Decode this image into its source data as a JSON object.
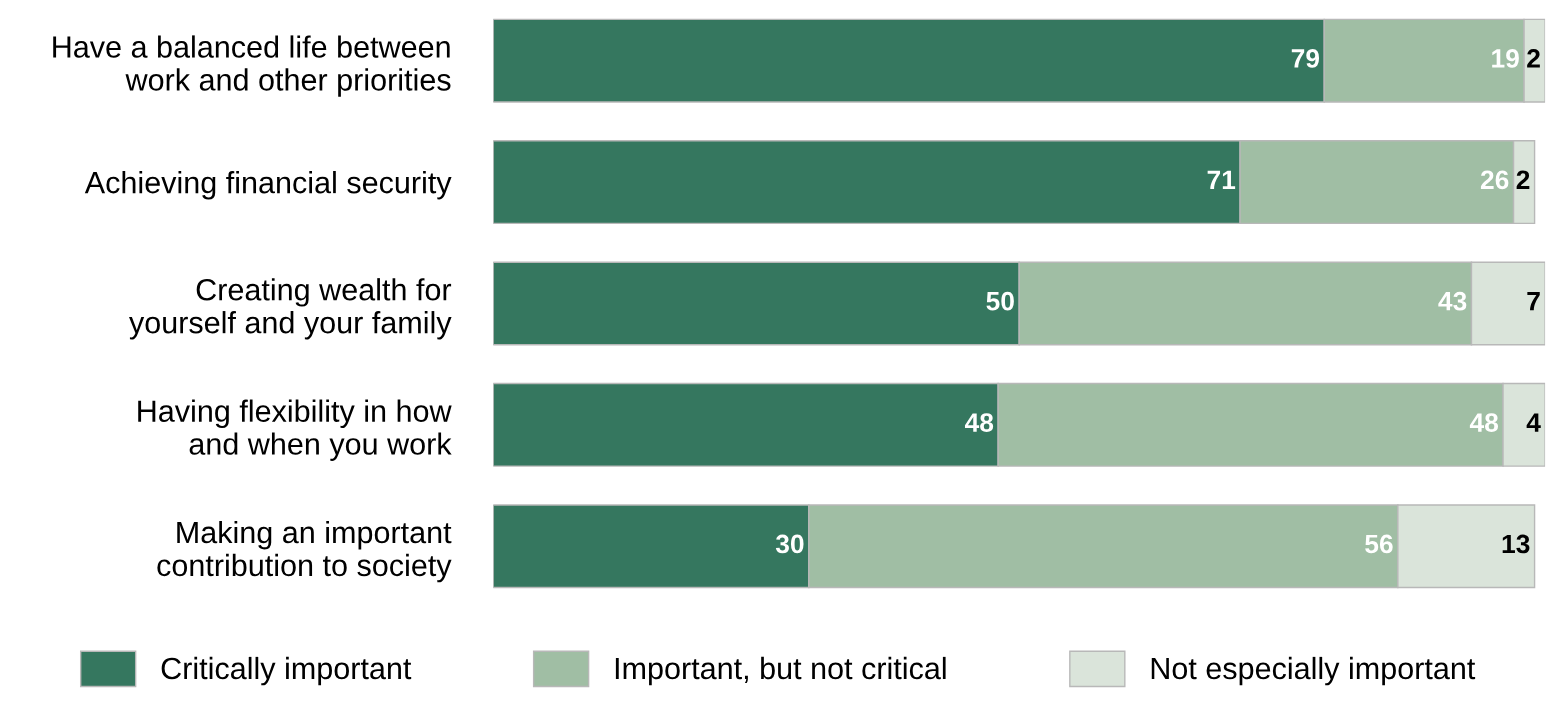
{
  "chart_data": {
    "type": "bar",
    "orientation": "horizontal",
    "stacked": true,
    "data_labels": true,
    "legend": "bottom",
    "grid": false,
    "categories": [
      "Have a balanced life between\nwork and other priorities",
      "Achieving financial security",
      "Creating wealth for\nyourself and your family",
      "Having flexibility in how\nand when you work",
      "Making an important\ncontribution to society"
    ],
    "series": [
      {
        "name": "Critically important",
        "color": "#35775f",
        "values": [
          79,
          71,
          50,
          48,
          30
        ]
      },
      {
        "name": "Important, but not critical",
        "color": "#a0bea4",
        "values": [
          19,
          26,
          43,
          48,
          56
        ]
      },
      {
        "name": "Not especially important",
        "color": "#dae4da",
        "values": [
          2,
          2,
          7,
          4,
          13
        ]
      }
    ]
  }
}
